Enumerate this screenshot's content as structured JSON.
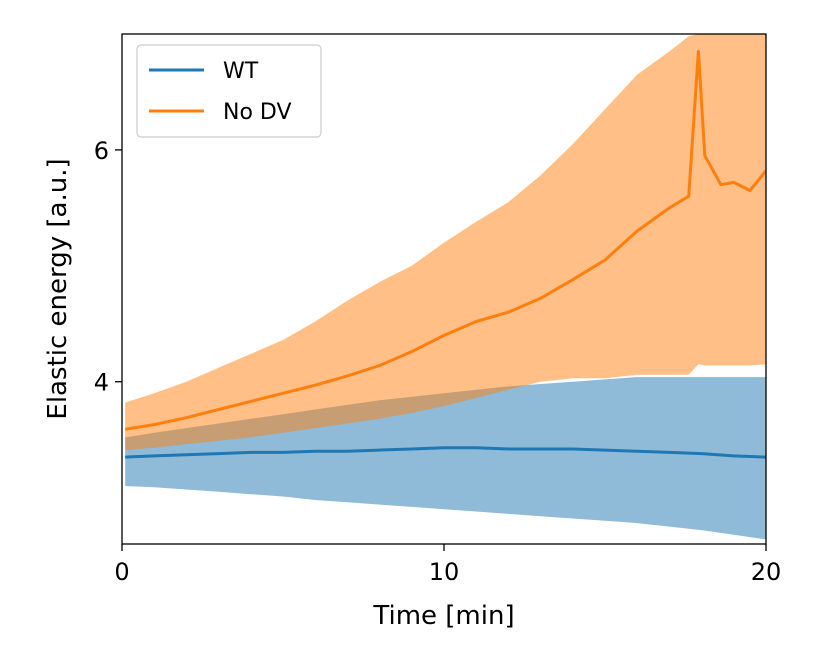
{
  "chart_data": {
    "type": "line",
    "xlabel": "Time [min]",
    "ylabel": "Elastic energy [a.u.]",
    "xlim": [
      0,
      20
    ],
    "ylim": [
      2.6,
      7.0
    ],
    "x_ticks": [
      "0",
      "10",
      "20"
    ],
    "y_ticks": [
      "4",
      "6"
    ],
    "x_tick_values": [
      0,
      10,
      20
    ],
    "y_tick_values": [
      4,
      6
    ],
    "grid": false,
    "legend_position": "top-left",
    "series": [
      {
        "name": "WT",
        "color": "#1f77b4",
        "band_color": "#80b2d7",
        "x": [
          0.1,
          1,
          2,
          3,
          4,
          5,
          6,
          7,
          8,
          9,
          10,
          11,
          12,
          13,
          14,
          15,
          16,
          17,
          18,
          19,
          20
        ],
        "mean": [
          3.35,
          3.36,
          3.37,
          3.38,
          3.39,
          3.39,
          3.4,
          3.4,
          3.41,
          3.42,
          3.43,
          3.43,
          3.42,
          3.42,
          3.42,
          3.41,
          3.4,
          3.39,
          3.38,
          3.36,
          3.35
        ],
        "upper": [
          3.52,
          3.56,
          3.6,
          3.64,
          3.68,
          3.72,
          3.76,
          3.8,
          3.84,
          3.87,
          3.9,
          3.93,
          3.96,
          3.98,
          4.0,
          4.02,
          4.04,
          4.04,
          4.04,
          4.04,
          4.04
        ],
        "lower": [
          3.1,
          3.09,
          3.07,
          3.05,
          3.03,
          3.01,
          2.98,
          2.96,
          2.94,
          2.92,
          2.9,
          2.88,
          2.86,
          2.84,
          2.82,
          2.8,
          2.78,
          2.75,
          2.72,
          2.68,
          2.64
        ]
      },
      {
        "name": "No DV",
        "color": "#ff7f0e",
        "band_color": "#ffbf86",
        "x": [
          0.1,
          1,
          2,
          3,
          4,
          5,
          6,
          7,
          8,
          9,
          10,
          11,
          12,
          13,
          14,
          15,
          16,
          17,
          17.6,
          17.9,
          18.1,
          18.6,
          19,
          19.5,
          20
        ],
        "mean": [
          3.59,
          3.63,
          3.69,
          3.76,
          3.83,
          3.9,
          3.97,
          4.05,
          4.14,
          4.26,
          4.4,
          4.52,
          4.6,
          4.72,
          4.88,
          5.05,
          5.3,
          5.5,
          5.6,
          6.85,
          5.95,
          5.7,
          5.72,
          5.65,
          5.82
        ],
        "upper": [
          3.82,
          3.9,
          4.0,
          4.12,
          4.24,
          4.36,
          4.52,
          4.7,
          4.86,
          5.0,
          5.2,
          5.38,
          5.55,
          5.78,
          6.05,
          6.35,
          6.65,
          6.85,
          6.98,
          7.0,
          7.0,
          7.0,
          7.0,
          7.0,
          7.0
        ],
        "lower": [
          3.41,
          3.43,
          3.46,
          3.49,
          3.52,
          3.56,
          3.6,
          3.64,
          3.68,
          3.73,
          3.79,
          3.86,
          3.93,
          4.0,
          4.03,
          4.03,
          4.06,
          4.06,
          4.06,
          4.15,
          4.14,
          4.14,
          4.14,
          4.14,
          4.15
        ]
      }
    ]
  }
}
